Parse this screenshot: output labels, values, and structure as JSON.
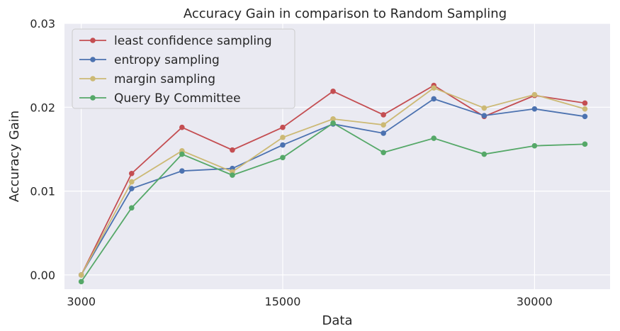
{
  "chart_data": {
    "type": "line",
    "title": "Accuracy Gain in comparison to Random Sampling",
    "xlabel": "Data",
    "ylabel": "Accuracy Gain",
    "x": [
      3000,
      6000,
      9000,
      12000,
      15000,
      18000,
      21000,
      24000,
      27000,
      30000,
      33000
    ],
    "xticks": [
      3000,
      15000,
      30000
    ],
    "xtick_labels": [
      "3000",
      "15000",
      "30000"
    ],
    "yticks": [
      0.0,
      0.01,
      0.02,
      0.03
    ],
    "ytick_labels": [
      "0.00",
      "0.01",
      "0.02",
      "0.03"
    ],
    "xlim": [
      2000,
      34500
    ],
    "ylim": [
      -0.0017,
      0.03
    ],
    "grid": true,
    "legend_position": "top-left",
    "series": [
      {
        "name": "least confidence sampling",
        "color": "#c44e52",
        "values": [
          0.0,
          0.0121,
          0.0176,
          0.0149,
          0.0176,
          0.0219,
          0.0191,
          0.0226,
          0.0189,
          0.0214,
          0.0205
        ]
      },
      {
        "name": "entropy sampling",
        "color": "#4c72b0",
        "values": [
          0.0,
          0.0103,
          0.0124,
          0.0127,
          0.0155,
          0.018,
          0.0169,
          0.021,
          0.019,
          0.0198,
          0.0189
        ]
      },
      {
        "name": "margin sampling",
        "color": "#ccb974",
        "values": [
          0.0,
          0.0111,
          0.0148,
          0.0123,
          0.0164,
          0.0186,
          0.0179,
          0.0223,
          0.0199,
          0.0215,
          0.0198
        ]
      },
      {
        "name": "Query By Committee",
        "color": "#55a868",
        "values": [
          -0.0008,
          0.008,
          0.0144,
          0.0119,
          0.014,
          0.0181,
          0.0146,
          0.0163,
          0.0144,
          0.0154,
          0.0156
        ]
      }
    ]
  },
  "colors": {
    "plot_background": "#eaeaf2",
    "grid": "#ffffff",
    "legend_background": "#eaeaf2",
    "legend_border": "#cccccc"
  }
}
